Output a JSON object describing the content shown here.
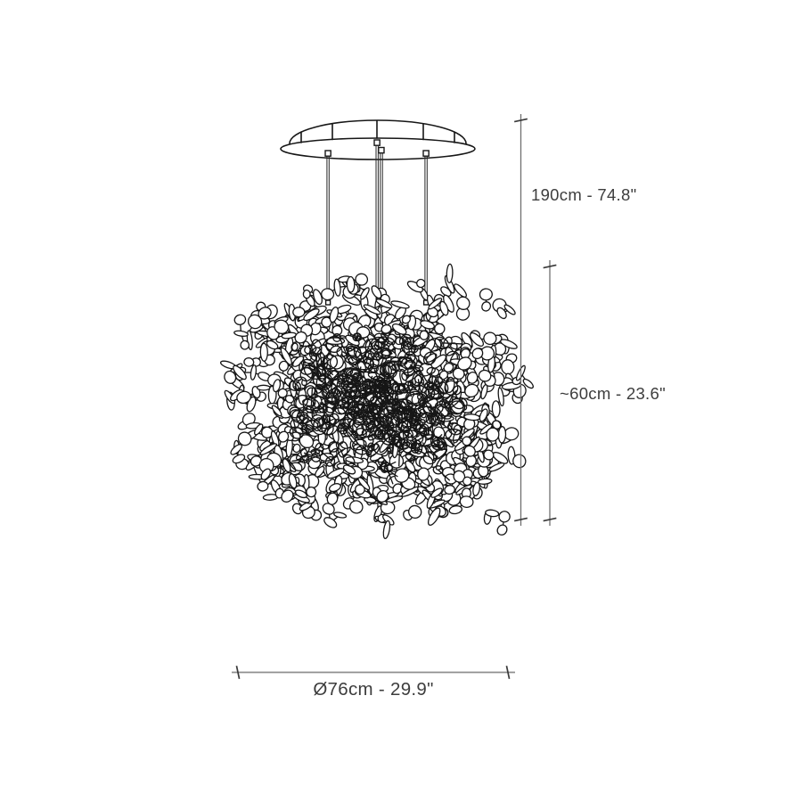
{
  "diagram": {
    "dimensions": {
      "overall_height": {
        "label": "190cm - 74.8\""
      },
      "body_height": {
        "label": "~60cm - 23.6\""
      },
      "diameter": {
        "label": "Ø76cm - 29.9\""
      }
    },
    "colors": {
      "background": "#ffffff",
      "artwork_line": "#161616",
      "dimension_line": "#6f6f6f",
      "dimension_line_h": "#8f8f8f",
      "dimension_tick": "#3a3a3a",
      "dimension_text": "#3d3d3d"
    }
  }
}
